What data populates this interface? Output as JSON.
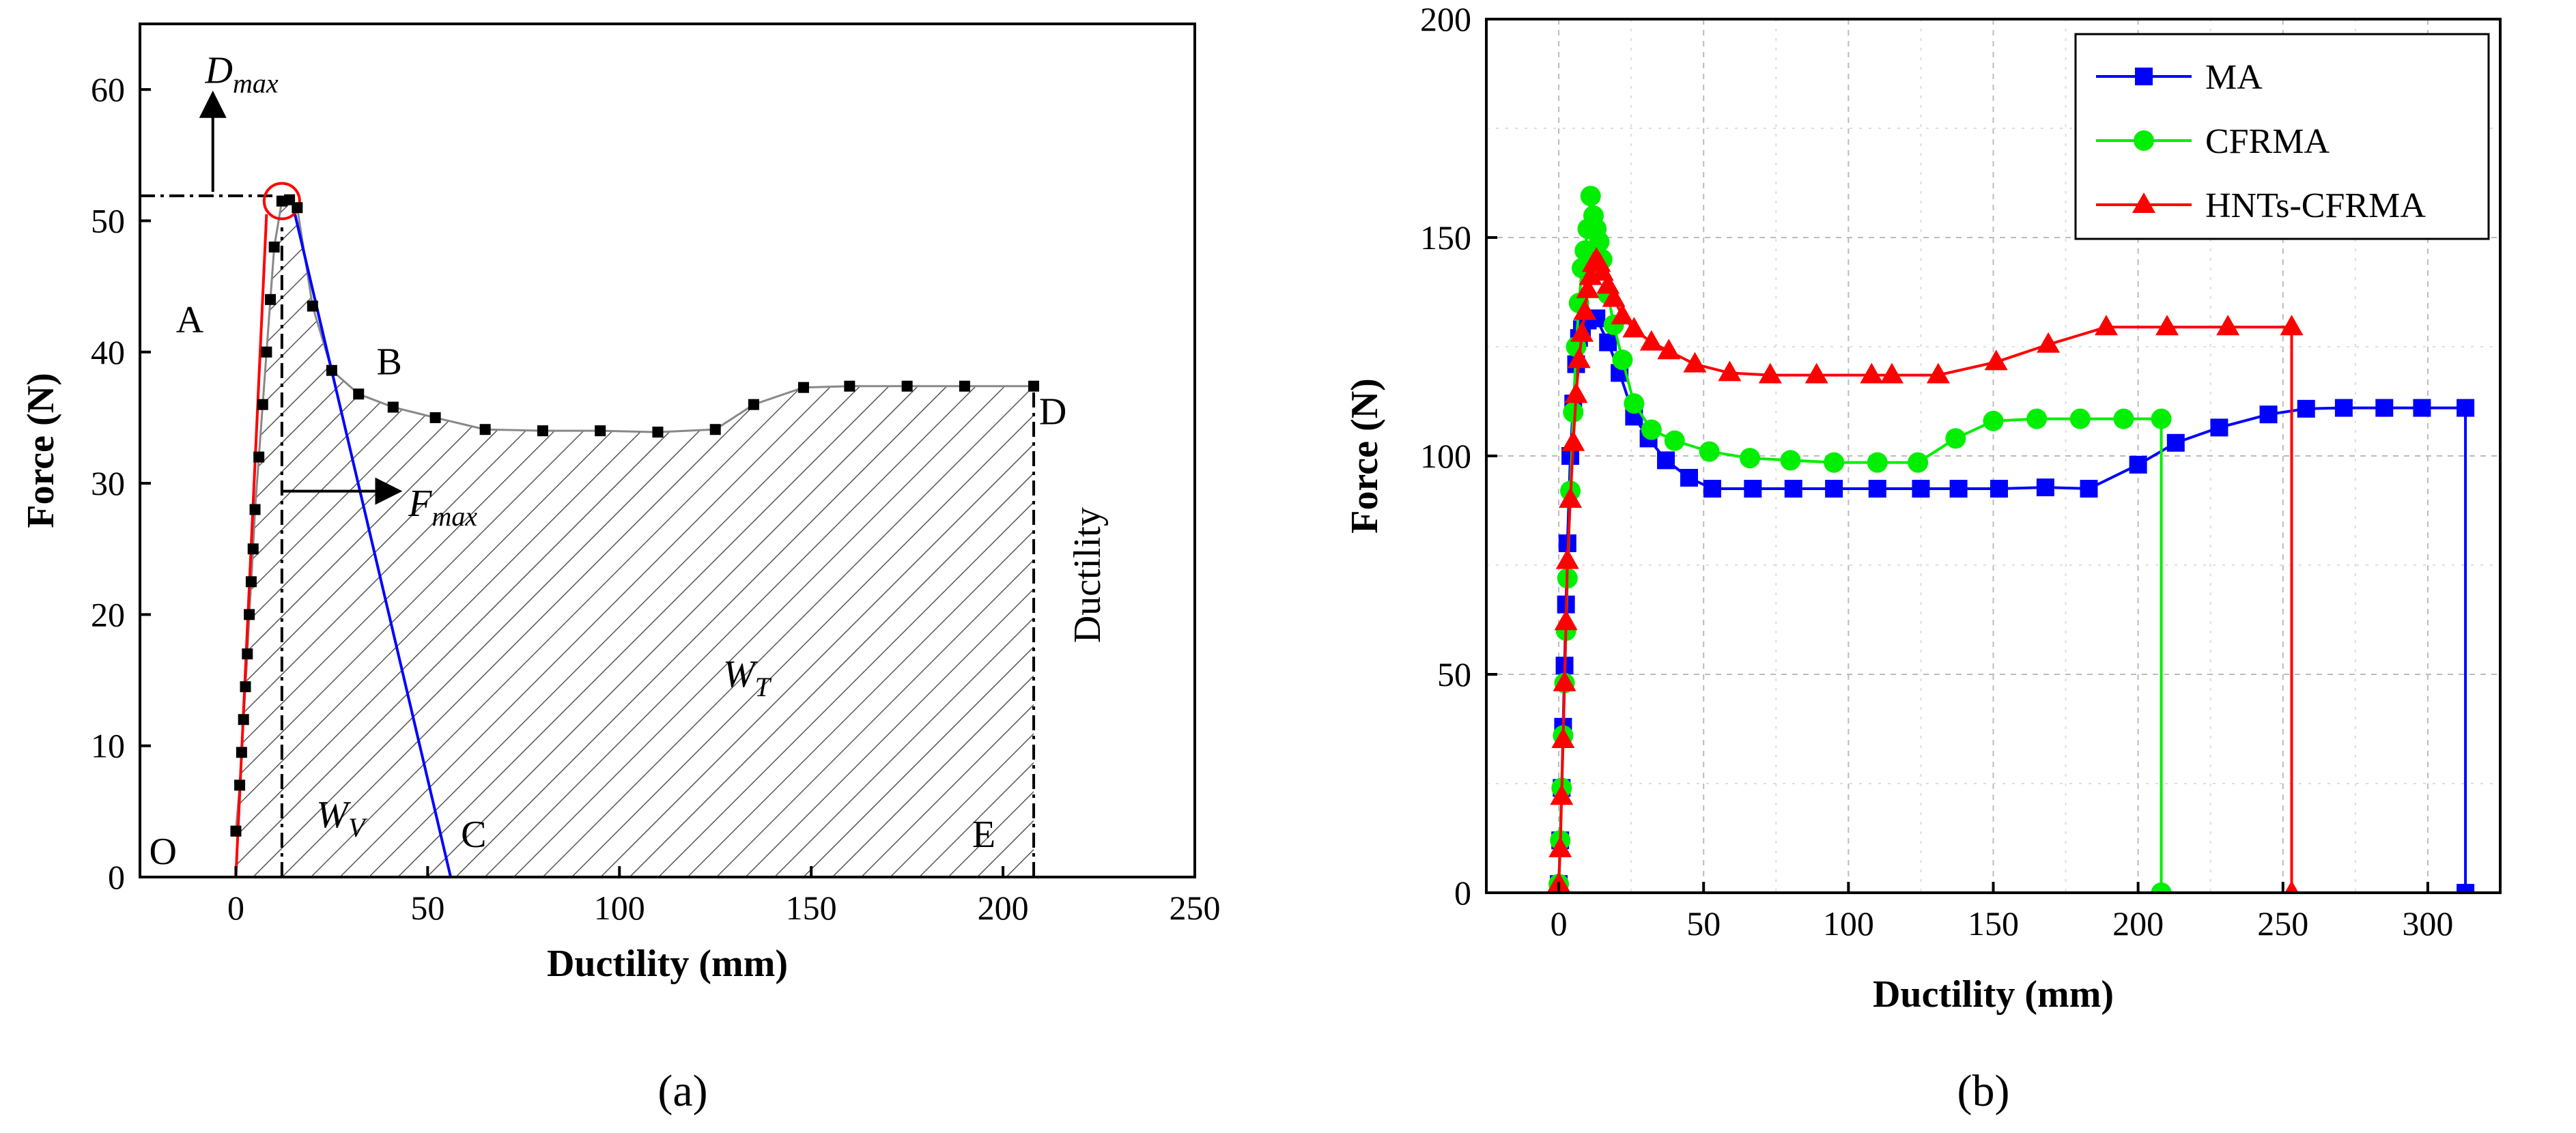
{
  "chart_data": [
    {
      "panel": "(a)",
      "type": "line",
      "xlabel": "Ductility (mm)",
      "ylabel": "Force (N)",
      "xlim": [
        -25,
        250
      ],
      "ylim": [
        0,
        65
      ],
      "xticks": [
        0,
        50,
        100,
        150,
        200,
        250
      ],
      "yticks": [
        0,
        10,
        20,
        30,
        40,
        50,
        60
      ],
      "grid": false,
      "series": [
        {
          "x": [
            0,
            1,
            1.5,
            2,
            2.5,
            3,
            3.5,
            4,
            4.5,
            5,
            6,
            7,
            8,
            9,
            10,
            12,
            14,
            16,
            20,
            25,
            32,
            41,
            52,
            65,
            80,
            95,
            110,
            125,
            135,
            148,
            160,
            175,
            190,
            208
          ],
          "y": [
            3.5,
            7,
            9.5,
            12,
            14.5,
            17,
            20,
            22.5,
            25,
            28,
            32,
            36,
            40,
            44,
            48,
            51.5,
            51.6,
            51,
            43.5,
            38.6,
            36.8,
            35.8,
            35.0,
            34.1,
            34.0,
            34.0,
            33.9,
            34.1,
            36.0,
            37.3,
            37.4,
            37.4,
            37.4,
            37.4
          ]
        }
      ],
      "annotations": [
        {
          "text": "D",
          "sub": "max"
        },
        {
          "text": "F",
          "sub": "max"
        },
        {
          "text": "A"
        },
        {
          "text": "B"
        },
        {
          "text": "C"
        },
        {
          "text": "D"
        },
        {
          "text": "E"
        },
        {
          "text": "O"
        },
        {
          "text": "W",
          "sub": "T"
        },
        {
          "text": "W",
          "sub": "V"
        },
        {
          "text": "Ductility"
        }
      ]
    },
    {
      "panel": "(b)",
      "type": "line",
      "xlabel": "Ductility (mm)",
      "ylabel": "Force (N)",
      "xlim": [
        -25,
        325
      ],
      "ylim": [
        0,
        200
      ],
      "xticks": [
        0,
        50,
        100,
        150,
        200,
        250,
        300
      ],
      "yticks": [
        0,
        50,
        100,
        150,
        200
      ],
      "grid": true,
      "legend": "top-right",
      "series": [
        {
          "name": "MA",
          "color": "#0000ff",
          "marker": "square",
          "x": [
            0,
            0.5,
            1,
            1.5,
            2,
            2.5,
            3,
            4,
            5,
            6,
            7,
            8,
            10,
            13,
            17,
            21,
            26,
            31,
            37,
            45,
            53,
            67,
            81,
            95,
            110,
            125,
            138,
            152,
            168,
            183,
            200,
            213,
            228,
            245,
            258,
            271,
            285,
            298,
            313,
            313
          ],
          "y": [
            2,
            12,
            24,
            38,
            52,
            66,
            80,
            100,
            112,
            121,
            127,
            129,
            131,
            131.5,
            126,
            119,
            109,
            104,
            99,
            95,
            92.5,
            92.5,
            92.5,
            92.5,
            92.5,
            92.5,
            92.5,
            92.5,
            92.8,
            92.5,
            98,
            103,
            106.5,
            109.5,
            110.8,
            111,
            111,
            111,
            111,
            0
          ]
        },
        {
          "name": "CFRMA",
          "color": "#00ee00",
          "marker": "circle",
          "x": [
            0,
            0.5,
            1,
            1.5,
            2,
            2.5,
            3,
            4,
            5,
            6,
            7,
            8,
            9,
            10,
            11,
            12,
            13,
            14,
            15,
            17,
            19,
            22,
            26,
            32,
            40,
            52,
            66,
            80,
            95,
            110,
            124,
            137,
            150,
            165,
            180,
            195,
            208,
            208
          ],
          "y": [
            2,
            12,
            24,
            36,
            48,
            60,
            72,
            92,
            110,
            125,
            135,
            143,
            147,
            152,
            159.5,
            155,
            152,
            149,
            145,
            137,
            130,
            122,
            112,
            106,
            103.5,
            101,
            99.5,
            99,
            98.5,
            98.5,
            98.5,
            104,
            108,
            108.5,
            108.5,
            108.5,
            108.5,
            0
          ]
        },
        {
          "name": "HNTs-CFRMA",
          "color": "#ff0000",
          "marker": "triangle",
          "x": [
            0,
            0.5,
            1,
            1.5,
            2,
            2.5,
            3,
            4,
            5,
            6,
            7,
            8,
            9,
            10,
            11,
            12,
            13,
            14,
            15,
            17,
            19,
            22,
            26,
            32,
            38,
            47,
            59,
            73,
            89,
            108,
            115,
            131,
            151,
            169,
            189,
            210,
            231,
            253,
            253
          ],
          "y": [
            2,
            10,
            22,
            35,
            48,
            62,
            76,
            90,
            103,
            114,
            122,
            128,
            133,
            138,
            141,
            144,
            145,
            144,
            142,
            139,
            136,
            132,
            129,
            126,
            124,
            121,
            119,
            118.5,
            118.5,
            118.5,
            118.5,
            118.5,
            121.5,
            125.5,
            129.5,
            129.5,
            129.5,
            129.5,
            0
          ]
        }
      ]
    }
  ]
}
